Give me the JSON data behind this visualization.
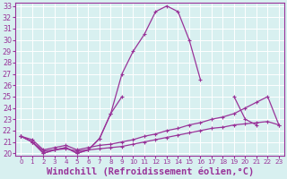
{
  "xlabel": "Windchill (Refroidissement éolien,°C)",
  "x_values": [
    0,
    1,
    2,
    3,
    4,
    5,
    6,
    7,
    8,
    9,
    10,
    11,
    12,
    13,
    14,
    15,
    16,
    17,
    18,
    19,
    20,
    21,
    22,
    23
  ],
  "line1_y": [
    21.5,
    21.0,
    20.0,
    20.3,
    20.5,
    20.0,
    20.3,
    21.3,
    23.5,
    27.0,
    29.0,
    30.5,
    32.5,
    33.0,
    32.5,
    30.0,
    26.5,
    null,
    null,
    null,
    null,
    null,
    null,
    null
  ],
  "line2_y": [
    21.5,
    21.0,
    20.0,
    20.3,
    20.5,
    20.0,
    20.3,
    21.3,
    23.5,
    25.0,
    null,
    null,
    null,
    null,
    null,
    null,
    null,
    null,
    null,
    25.0,
    23.0,
    22.5,
    null,
    null
  ],
  "line3_y": [
    21.5,
    21.2,
    20.3,
    20.5,
    20.7,
    20.3,
    20.5,
    20.7,
    20.8,
    21.0,
    21.2,
    21.5,
    21.7,
    22.0,
    22.2,
    22.5,
    22.7,
    23.0,
    23.2,
    23.5,
    24.0,
    24.5,
    25.0,
    22.5
  ],
  "line4_y": [
    21.5,
    21.0,
    20.2,
    20.3,
    20.4,
    20.2,
    20.3,
    20.4,
    20.5,
    20.6,
    20.8,
    21.0,
    21.2,
    21.4,
    21.6,
    21.8,
    22.0,
    22.2,
    22.3,
    22.5,
    22.6,
    22.7,
    22.8,
    22.5
  ],
  "ylim": [
    20,
    33
  ],
  "xlim": [
    0,
    23
  ],
  "yticks": [
    20,
    21,
    22,
    23,
    24,
    25,
    26,
    27,
    28,
    29,
    30,
    31,
    32,
    33
  ],
  "xticks": [
    0,
    1,
    2,
    3,
    4,
    5,
    6,
    7,
    8,
    9,
    10,
    11,
    12,
    13,
    14,
    15,
    16,
    17,
    18,
    19,
    20,
    21,
    22,
    23
  ],
  "line_color": "#993399",
  "bg_color": "#d8f0f0",
  "grid_color": "#ffffff"
}
